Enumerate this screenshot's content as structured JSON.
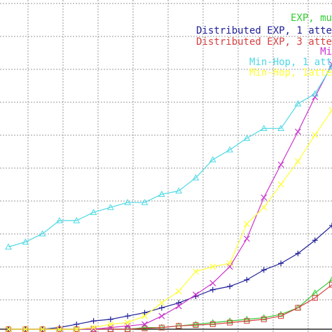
{
  "chart_data": {
    "type": "line",
    "title": "",
    "xlabel": "",
    "ylabel": "",
    "xlim": [
      1,
      20
    ],
    "ylim": [
      0,
      20
    ],
    "grid": true,
    "legend_position": "top-right",
    "x": [
      1,
      2,
      3,
      4,
      5,
      6,
      7,
      8,
      9,
      10,
      11,
      12,
      13,
      14,
      15,
      16,
      17,
      18,
      19,
      20
    ],
    "series": [
      {
        "name": "EXP, mu",
        "color": "#33cc33",
        "marker": "triangle",
        "values": [
          0,
          0,
          0,
          0,
          0,
          0,
          0,
          0,
          0.1,
          0.1,
          0.2,
          0.3,
          0.4,
          0.5,
          0.6,
          0.7,
          0.9,
          1.3,
          2.2,
          3.0
        ]
      },
      {
        "name": "Distributed EXP, 1 atte",
        "color": "#1f1f99",
        "marker": "plus",
        "values": [
          0,
          0,
          0,
          0.1,
          0.3,
          0.5,
          0.6,
          0.8,
          1.0,
          1.3,
          1.6,
          2.0,
          2.4,
          2.6,
          3.0,
          3.6,
          4.0,
          4.6,
          5.4,
          6.3
        ]
      },
      {
        "name": "Distributed EXP, 3 atte",
        "color": "#d94040",
        "marker": "square",
        "values": [
          0,
          0,
          0,
          0,
          0,
          0,
          0,
          0,
          0.05,
          0.1,
          0.2,
          0.25,
          0.3,
          0.4,
          0.5,
          0.6,
          0.8,
          1.3,
          1.9,
          2.7
        ]
      },
      {
        "name": "Mi",
        "color": "#cc33cc",
        "marker": "x",
        "values": [
          0,
          0,
          0,
          0,
          0,
          0,
          0.1,
          0.2,
          0.3,
          0.8,
          1.4,
          2.1,
          2.8,
          3.8,
          5.5,
          8.0,
          10.0,
          12.0,
          14.1,
          16.1
        ]
      },
      {
        "name": "Min-Hop, 1 att",
        "color": "#4dd9e6",
        "marker": "triangle",
        "values": [
          5.0,
          5.3,
          5.8,
          6.6,
          6.6,
          7.1,
          7.4,
          7.7,
          7.7,
          8.2,
          8.4,
          9.2,
          10.3,
          10.9,
          11.6,
          12.2,
          12.2,
          13.7,
          14.3,
          16.0
        ]
      },
      {
        "name": "Min-Hop, 1atte",
        "color": "#ffff33",
        "marker": "x",
        "values": [
          0,
          0,
          0,
          0,
          0,
          0.1,
          0.3,
          0.4,
          0.8,
          1.6,
          2.3,
          3.5,
          3.8,
          4.0,
          6.4,
          7.4,
          8.8,
          10.2,
          11.8,
          13.3
        ]
      }
    ]
  }
}
